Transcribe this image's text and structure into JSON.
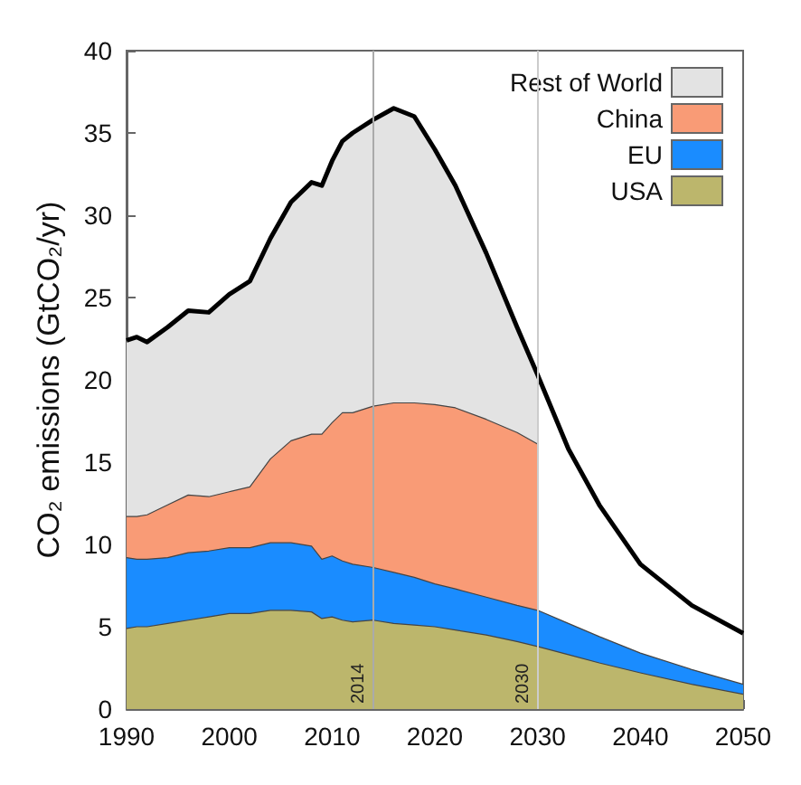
{
  "chart_data": {
    "type": "area",
    "ylabel": "CO₂ emissions (GtCO₂/yr)",
    "stacked": true,
    "legend": "top right",
    "grid": false,
    "marker": "none",
    "line_style": "solid",
    "x": [
      1990,
      1991,
      1992,
      1994,
      1996,
      1998,
      2000,
      2002,
      2004,
      2006,
      2008,
      2009,
      2010,
      2011,
      2012,
      2014,
      2016,
      2018,
      2020,
      2022,
      2025,
      2028,
      2030,
      2033,
      2036,
      2040,
      2045,
      2050
    ],
    "series": [
      {
        "name": "USA",
        "color": "#bcb66c",
        "values": [
          4.9,
          5.0,
          5.0,
          5.2,
          5.4,
          5.6,
          5.8,
          5.8,
          6.0,
          6.0,
          5.9,
          5.5,
          5.6,
          5.4,
          5.3,
          5.4,
          5.2,
          5.1,
          5.0,
          4.8,
          4.5,
          4.1,
          3.8,
          3.3,
          2.8,
          2.2,
          1.5,
          0.9
        ]
      },
      {
        "name": "EU",
        "color": "#1a8cff",
        "values": [
          4.3,
          4.1,
          4.1,
          4.0,
          4.1,
          4.0,
          4.0,
          4.0,
          4.1,
          4.1,
          4.0,
          3.6,
          3.7,
          3.6,
          3.5,
          3.2,
          3.1,
          2.9,
          2.6,
          2.5,
          2.3,
          2.2,
          2.2,
          1.9,
          1.6,
          1.2,
          0.9,
          0.6
        ]
      },
      {
        "name": "China",
        "color": "#f99b76",
        "values": [
          2.5,
          2.6,
          2.7,
          3.2,
          3.5,
          3.3,
          3.4,
          3.7,
          5.1,
          6.2,
          6.8,
          7.6,
          8.1,
          9.0,
          9.2,
          9.8,
          10.3,
          10.6,
          10.9,
          11.0,
          10.8,
          10.5,
          10.1,
          null,
          null,
          null,
          null,
          null
        ]
      },
      {
        "name": "Rest of World",
        "color": "#e3e3e3",
        "values": [
          10.7,
          10.9,
          10.5,
          10.8,
          11.2,
          11.2,
          12.0,
          12.5,
          13.4,
          14.5,
          15.3,
          15.1,
          15.9,
          16.5,
          17.0,
          17.4,
          17.9,
          17.4,
          15.5,
          13.5,
          10.1,
          6.4,
          4.2,
          null,
          null,
          null,
          null,
          null
        ]
      },
      {
        "type": "line",
        "color": "#000000",
        "values": [
          22.4,
          22.6,
          22.3,
          23.2,
          24.2,
          24.1,
          25.2,
          26.0,
          28.6,
          30.8,
          32.0,
          31.8,
          33.3,
          34.5,
          35.0,
          35.8,
          36.5,
          36.0,
          34.0,
          31.8,
          27.7,
          23.2,
          20.3,
          15.8,
          12.4,
          8.8,
          6.3,
          4.6
        ]
      }
    ],
    "ref_lines": [
      {
        "axis": "x",
        "value": 2014,
        "label": "2014",
        "color": "#aaaaaa"
      },
      {
        "axis": "x",
        "value": 2030,
        "label": "2030",
        "color": "#cccccc"
      }
    ],
    "xlim": [
      1990,
      2050
    ],
    "xticks": [
      1990,
      2000,
      2010,
      2020,
      2030,
      2040,
      2050
    ],
    "ylim": [
      0,
      40
    ],
    "yticks": [
      0,
      5,
      10,
      15,
      20,
      25,
      30,
      35,
      40
    ]
  }
}
